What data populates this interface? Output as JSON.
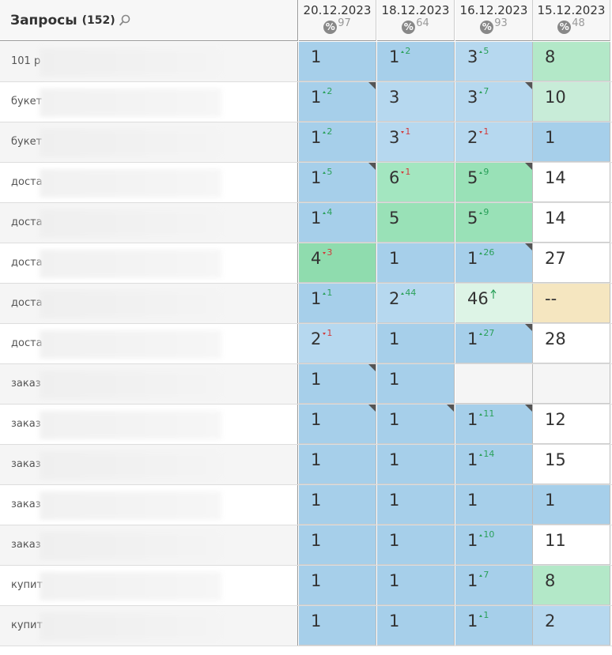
{
  "header": {
    "title": "Запросы",
    "count": "(152)",
    "pct_icon": "%",
    "columns": [
      {
        "date": "20.12.2023",
        "pct": 97
      },
      {
        "date": "18.12.2023",
        "pct": 64
      },
      {
        "date": "16.12.2023",
        "pct": 93
      },
      {
        "date": "15.12.2023",
        "pct": 48
      }
    ]
  },
  "rows": [
    {
      "label": "101 р",
      "cells": [
        {
          "value": 1,
          "color": "#a6cfea"
        },
        {
          "value": 1,
          "delta": 2,
          "dir": "up",
          "color": "#a6cfea"
        },
        {
          "value": 3,
          "delta": 5,
          "dir": "up",
          "color": "#b6d8ef"
        },
        {
          "value": 8,
          "color": "#b3e8c8"
        }
      ]
    },
    {
      "label": "букет",
      "cells": [
        {
          "value": 1,
          "delta": 2,
          "dir": "up",
          "color": "#a6cfea",
          "flag": true
        },
        {
          "value": 3,
          "color": "#b6d8ef"
        },
        {
          "value": 3,
          "delta": 7,
          "dir": "up",
          "color": "#b6d8ef",
          "flag": true
        },
        {
          "value": 10,
          "color": "#c8ecd8"
        }
      ]
    },
    {
      "label": "букет",
      "cells": [
        {
          "value": 1,
          "delta": 2,
          "dir": "up",
          "color": "#a6cfea"
        },
        {
          "value": 3,
          "delta": 1,
          "dir": "down",
          "color": "#b6d8ef"
        },
        {
          "value": 2,
          "delta": 1,
          "dir": "down",
          "color": "#b6d8ef"
        },
        {
          "value": 1,
          "color": "#a6cfea"
        }
      ]
    },
    {
      "label": "доста",
      "cells": [
        {
          "value": 1,
          "delta": 5,
          "dir": "up",
          "color": "#a6cfea",
          "flag": true
        },
        {
          "value": 6,
          "delta": 1,
          "dir": "down",
          "color": "#a3e6c0"
        },
        {
          "value": 5,
          "delta": 9,
          "dir": "up",
          "color": "#99e1b7",
          "flag": true
        },
        {
          "value": 14,
          "color": "#ffffff"
        }
      ]
    },
    {
      "label": "доста",
      "cells": [
        {
          "value": 1,
          "delta": 4,
          "dir": "up",
          "color": "#a6cfea"
        },
        {
          "value": 5,
          "color": "#99e1b7"
        },
        {
          "value": 5,
          "delta": 9,
          "dir": "up",
          "color": "#99e1b7"
        },
        {
          "value": 14,
          "color": "#ffffff"
        }
      ]
    },
    {
      "label": "доста",
      "cells": [
        {
          "value": 4,
          "delta": 3,
          "dir": "down",
          "color": "#8fdcae"
        },
        {
          "value": 1,
          "color": "#a6cfea"
        },
        {
          "value": 1,
          "delta": 26,
          "dir": "up",
          "color": "#a6cfea",
          "flag": true
        },
        {
          "value": 27,
          "color": "#ffffff"
        }
      ]
    },
    {
      "label": "доста",
      "cells": [
        {
          "value": 1,
          "delta": 1,
          "dir": "up",
          "color": "#a6cfea"
        },
        {
          "value": 2,
          "delta": 44,
          "dir": "up",
          "color": "#b6d8ef"
        },
        {
          "value": 46,
          "dir": "new",
          "color": "#ddf4e6"
        },
        {
          "value": "--",
          "color": "#f5e6c0"
        }
      ]
    },
    {
      "label": "доста",
      "cells": [
        {
          "value": 2,
          "delta": 1,
          "dir": "down",
          "color": "#b6d8ef"
        },
        {
          "value": 1,
          "color": "#a6cfea"
        },
        {
          "value": 1,
          "delta": 27,
          "dir": "up",
          "color": "#a6cfea",
          "flag": true
        },
        {
          "value": 28,
          "color": "#ffffff"
        }
      ]
    },
    {
      "label": "заказ",
      "cells": [
        {
          "value": 1,
          "color": "#a6cfea",
          "flag": true
        },
        {
          "value": 1,
          "color": "#a6cfea"
        },
        {
          "color": "#f5f5f5"
        },
        {
          "color": "#f5f5f5"
        }
      ]
    },
    {
      "label": "заказ",
      "cells": [
        {
          "value": 1,
          "color": "#a6cfea",
          "flag": true
        },
        {
          "value": 1,
          "color": "#a6cfea",
          "flag": true
        },
        {
          "value": 1,
          "delta": 11,
          "dir": "up",
          "color": "#a6cfea",
          "flag": true
        },
        {
          "value": 12,
          "color": "#ffffff"
        }
      ]
    },
    {
      "label": "заказ",
      "cells": [
        {
          "value": 1,
          "color": "#a6cfea"
        },
        {
          "value": 1,
          "color": "#a6cfea"
        },
        {
          "value": 1,
          "delta": 14,
          "dir": "up",
          "color": "#a6cfea"
        },
        {
          "value": 15,
          "color": "#ffffff"
        }
      ]
    },
    {
      "label": "заказ",
      "cells": [
        {
          "value": 1,
          "color": "#a6cfea"
        },
        {
          "value": 1,
          "color": "#a6cfea"
        },
        {
          "value": 1,
          "color": "#a6cfea"
        },
        {
          "value": 1,
          "color": "#a6cfea"
        }
      ]
    },
    {
      "label": "заказ",
      "cells": [
        {
          "value": 1,
          "color": "#a6cfea"
        },
        {
          "value": 1,
          "color": "#a6cfea"
        },
        {
          "value": 1,
          "delta": 10,
          "dir": "up",
          "color": "#a6cfea"
        },
        {
          "value": 11,
          "color": "#ffffff"
        }
      ]
    },
    {
      "label": "купит",
      "cells": [
        {
          "value": 1,
          "color": "#a6cfea"
        },
        {
          "value": 1,
          "color": "#a6cfea"
        },
        {
          "value": 1,
          "delta": 7,
          "dir": "up",
          "color": "#a6cfea"
        },
        {
          "value": 8,
          "color": "#b3e8c8"
        }
      ]
    },
    {
      "label": "купит",
      "cells": [
        {
          "value": 1,
          "color": "#a6cfea"
        },
        {
          "value": 1,
          "color": "#a6cfea"
        },
        {
          "value": 1,
          "delta": 1,
          "dir": "up",
          "color": "#a6cfea"
        },
        {
          "value": 2,
          "color": "#b6d8ef"
        }
      ]
    }
  ]
}
